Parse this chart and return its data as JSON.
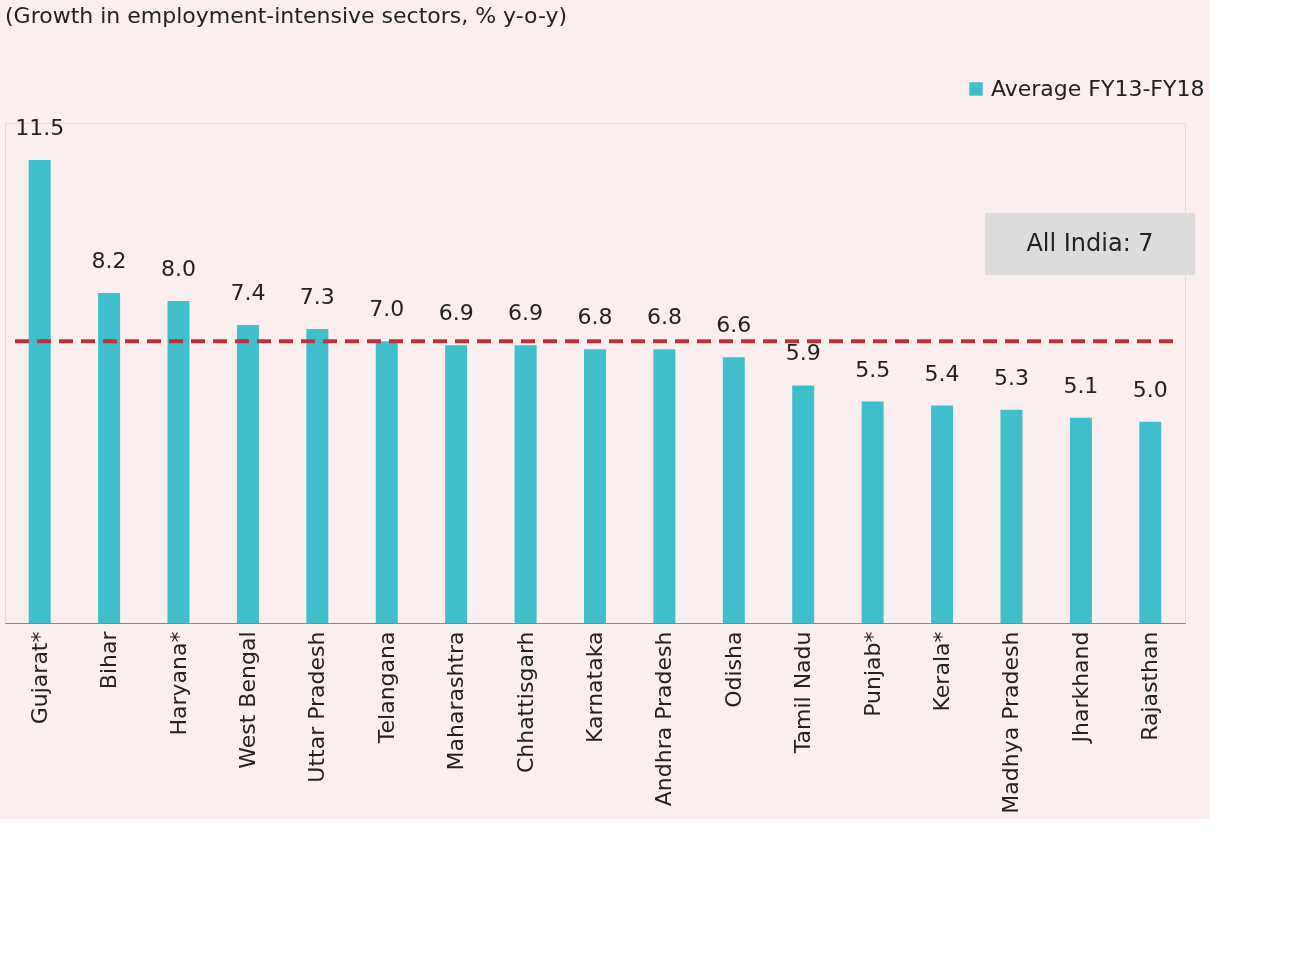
{
  "chart_data": {
    "type": "bar",
    "title": "(Growth in employment-intensive sectors, % y-o-y)",
    "categories": [
      "Gujarat*",
      "Bihar",
      "Haryana*",
      "West Bengal",
      "Uttar Pradesh",
      "Telangana",
      "Maharashtra",
      "Chhattisgarh",
      "Karnataka",
      "Andhra Pradesh",
      "Odisha",
      "Tamil Nadu",
      "Punjab*",
      "Kerala*",
      "Madhya Pradesh",
      "Jharkhand",
      "Rajasthan"
    ],
    "series": [
      {
        "name": "Average FY13-FY18",
        "color": "#3fbfcb",
        "values": [
          11.5,
          8.2,
          8.0,
          7.4,
          7.3,
          7.0,
          6.9,
          6.9,
          6.8,
          6.8,
          6.6,
          5.9,
          5.5,
          5.4,
          5.3,
          5.1,
          5.0
        ],
        "value_labels": [
          "11.5",
          "8.2",
          "8.0",
          "7.4",
          "7.3",
          "7.0",
          "6.9",
          "6.9",
          "6.8",
          "6.8",
          "6.6",
          "5.9",
          "5.5",
          "5.4",
          "5.3",
          "5.1",
          "5.0"
        ]
      }
    ],
    "legend": "top right",
    "annotations": [
      "All India: 7"
    ],
    "ref_lines": [
      {
        "axis": "y",
        "value": 7,
        "color": "#c0303a",
        "line_style": "dashed"
      }
    ]
  }
}
